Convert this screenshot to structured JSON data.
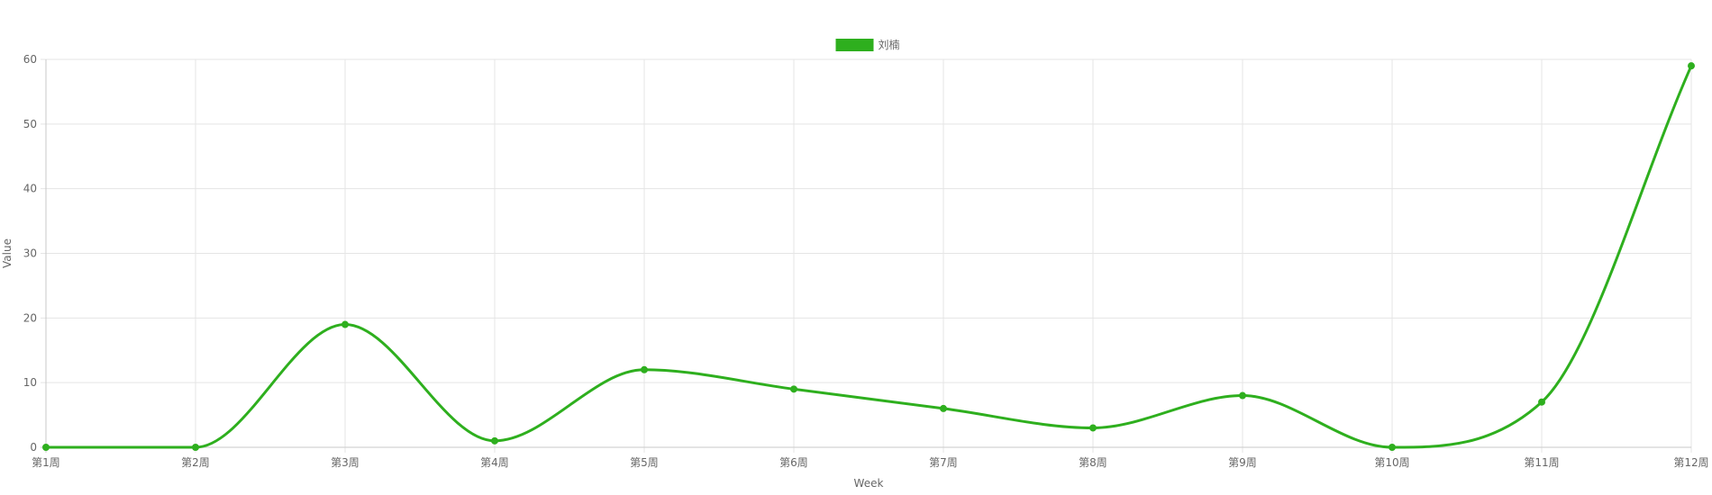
{
  "chart_data": {
    "type": "line",
    "title": "",
    "xlabel": "Week",
    "ylabel": "Value",
    "categories": [
      "第1周",
      "第2周",
      "第3周",
      "第4周",
      "第5周",
      "第6周",
      "第7周",
      "第8周",
      "第9周",
      "第10周",
      "第11周",
      "第12周"
    ],
    "series": [
      {
        "name": "刘楠",
        "color": "#2eaf1e",
        "values": [
          0,
          0,
          19,
          1,
          12,
          9,
          6,
          3,
          8,
          0,
          7,
          59
        ]
      }
    ],
    "ylim": [
      0,
      60
    ],
    "yticks": [
      0,
      10,
      20,
      30,
      40,
      50,
      60
    ],
    "grid": true,
    "legend_position": "top-center",
    "curve": "smooth"
  }
}
